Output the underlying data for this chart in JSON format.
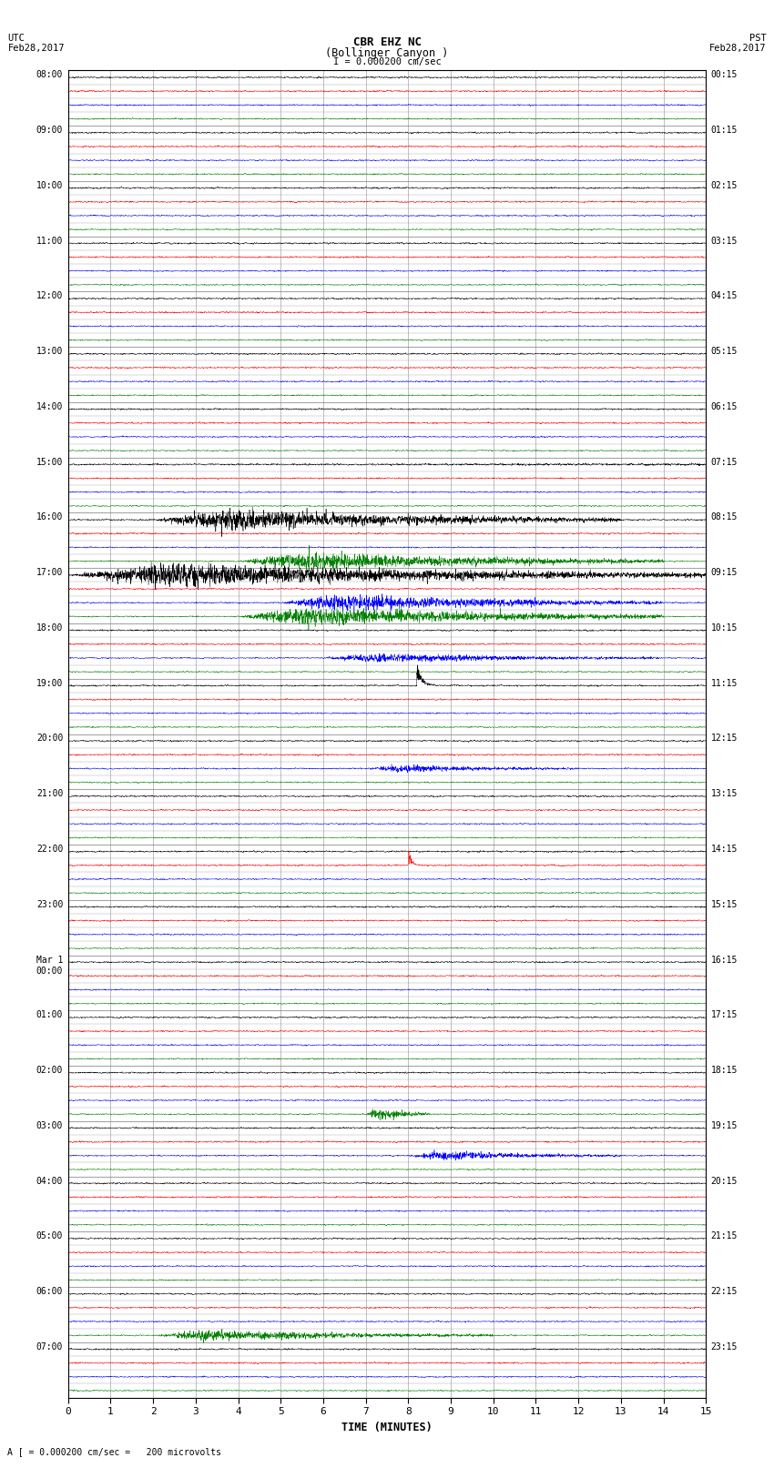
{
  "title_line1": "CBR EHZ NC",
  "title_line2": "(Bollinger Canyon )",
  "scale_label": "I = 0.000200 cm/sec",
  "bottom_label": "A [ = 0.000200 cm/sec =   200 microvolts",
  "xlabel": "TIME (MINUTES)",
  "left_times": [
    "08:00",
    "09:00",
    "10:00",
    "11:00",
    "12:00",
    "13:00",
    "14:00",
    "15:00",
    "16:00",
    "17:00",
    "18:00",
    "19:00",
    "20:00",
    "21:00",
    "22:00",
    "23:00",
    "Mar 1\n00:00",
    "01:00",
    "02:00",
    "03:00",
    "04:00",
    "05:00",
    "06:00",
    "07:00"
  ],
  "right_times": [
    "00:15",
    "01:15",
    "02:15",
    "03:15",
    "04:15",
    "05:15",
    "06:15",
    "07:15",
    "08:15",
    "09:15",
    "10:15",
    "11:15",
    "12:15",
    "13:15",
    "14:15",
    "15:15",
    "16:15",
    "17:15",
    "18:15",
    "19:15",
    "20:15",
    "21:15",
    "22:15",
    "23:15"
  ],
  "num_rows": 24,
  "traces_per_row": 4,
  "minutes": 15,
  "colors": [
    "black",
    "red",
    "blue",
    "green"
  ],
  "background": "white",
  "grid_color": "#808080",
  "figsize": [
    8.5,
    16.13
  ]
}
